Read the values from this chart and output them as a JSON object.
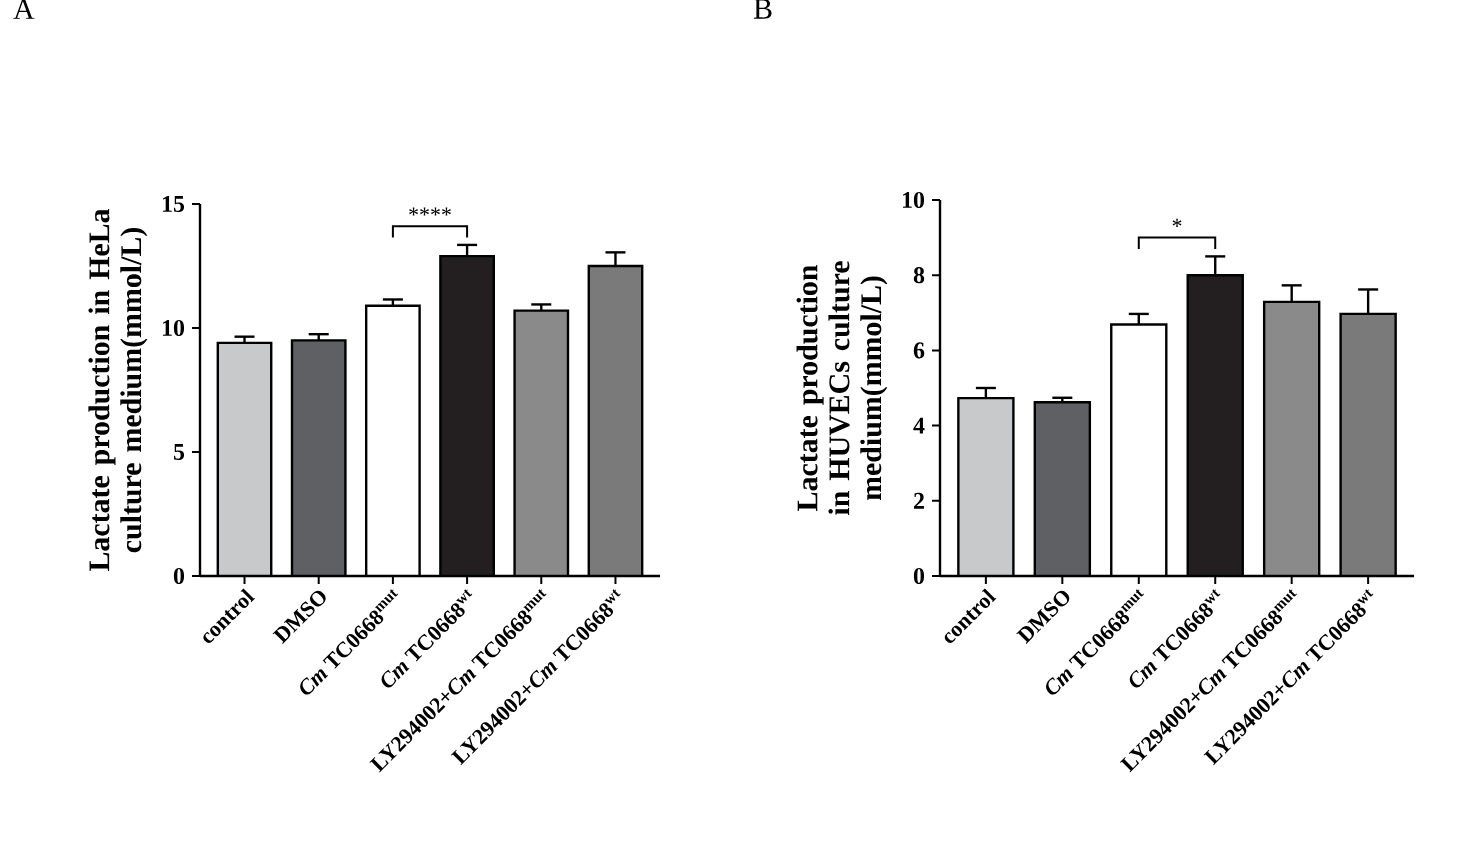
{
  "chart_data": [
    {
      "type": "bar",
      "title": "A",
      "ylabel": "Lactate production in HeLa culture medium(mmol/L)",
      "categories": [
        "control",
        "DMSO",
        "*Cm* TC0668$^{mut}$",
        "*Cm* TC0668$^{wt}$",
        "LY294002+*Cm* TC0668$^{mut}$",
        "LY294002+*Cm* TC0668$^{wt}$"
      ],
      "values": [
        9.4,
        9.5,
        10.9,
        12.9,
        10.7,
        12.5
      ],
      "errors": [
        0.25,
        0.25,
        0.25,
        0.45,
        0.25,
        0.55
      ],
      "colors": [
        "#c8c9cb",
        "#5f6064",
        "#ffffff",
        "#231f20",
        "#8a8a8a",
        "#7a7a7a"
      ],
      "ylim": [
        0,
        15
      ],
      "yticks": [
        0,
        5,
        10,
        15
      ],
      "grid": false,
      "annotations": [
        "****"
      ]
    },
    {
      "type": "bar",
      "title": "B",
      "ylabel": "Lactate production in HUVECs culture medium(mmol/L)",
      "categories": [
        "control",
        "DMSO",
        "*Cm* TC0668$^{mut}$",
        "*Cm* TC0668$^{wt}$",
        "LY294002+*Cm* TC0668$^{mut}$",
        "LY294002+*Cm* TC0668$^{wt}$"
      ],
      "values": [
        4.73,
        4.62,
        6.69,
        8.0,
        7.29,
        6.97
      ],
      "errors": [
        0.27,
        0.12,
        0.28,
        0.5,
        0.44,
        0.65
      ],
      "colors": [
        "#c8c9cb",
        "#5f6064",
        "#ffffff",
        "#231f20",
        "#8a8a8a",
        "#7a7a7a"
      ],
      "ylim": [
        0,
        10
      ],
      "yticks": [
        0,
        2,
        4,
        6,
        8,
        10
      ],
      "grid": false,
      "annotations": [
        "*"
      ]
    }
  ]
}
